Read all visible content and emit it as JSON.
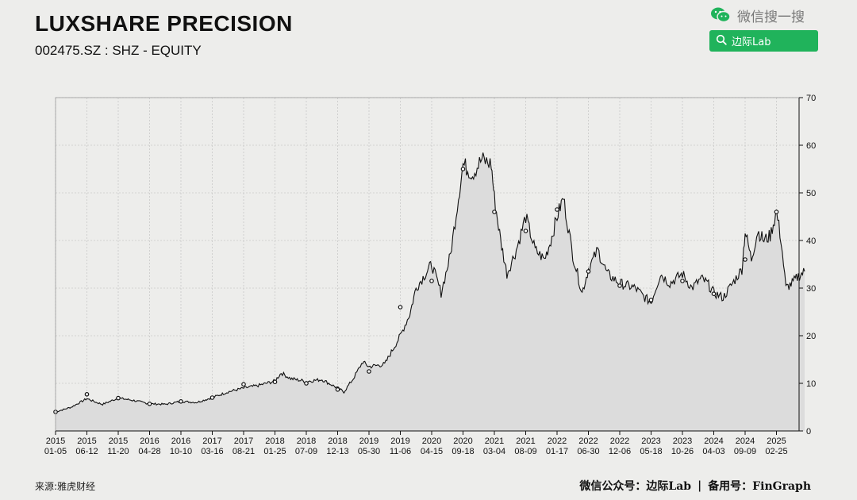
{
  "header": {
    "title": "LUXSHARE PRECISION",
    "subtitle": "002475.SZ : SHZ - EQUITY"
  },
  "wechat": {
    "icon": "wechat-icon",
    "search_text": "微信搜一搜",
    "button_icon": "search-icon",
    "button_label": "边际Lab",
    "button_color": "#20b35b"
  },
  "footer": {
    "source": "来源:雅虎财经",
    "wechat_account": "微信公众号：边际Lab",
    "separator": "|",
    "backup_account": "备用号：FinGraph"
  },
  "chart_data": {
    "type": "area",
    "title": "",
    "xlabel": "",
    "ylabel": "",
    "ylim": [
      0,
      70
    ],
    "y_ticks": [
      0,
      10,
      20,
      30,
      40,
      50,
      60,
      70
    ],
    "y_axis_side": "right",
    "grid": true,
    "line_color": "#111111",
    "fill_color": "#dcdcdc",
    "x_ticks": [
      {
        "year": "2015",
        "md": "01-05"
      },
      {
        "year": "2015",
        "md": "06-12"
      },
      {
        "year": "2015",
        "md": "11-20"
      },
      {
        "year": "2016",
        "md": "04-28"
      },
      {
        "year": "2016",
        "md": "10-10"
      },
      {
        "year": "2017",
        "md": "03-16"
      },
      {
        "year": "2017",
        "md": "08-21"
      },
      {
        "year": "2018",
        "md": "01-25"
      },
      {
        "year": "2018",
        "md": "07-09"
      },
      {
        "year": "2018",
        "md": "12-13"
      },
      {
        "year": "2019",
        "md": "05-30"
      },
      {
        "year": "2019",
        "md": "11-06"
      },
      {
        "year": "2020",
        "md": "04-15"
      },
      {
        "year": "2020",
        "md": "09-18"
      },
      {
        "year": "2021",
        "md": "03-04"
      },
      {
        "year": "2021",
        "md": "08-09"
      },
      {
        "year": "2022",
        "md": "01-17"
      },
      {
        "year": "2022",
        "md": "06-30"
      },
      {
        "year": "2022",
        "md": "12-06"
      },
      {
        "year": "2023",
        "md": "05-18"
      },
      {
        "year": "2023",
        "md": "10-26"
      },
      {
        "year": "2024",
        "md": "04-03"
      },
      {
        "year": "2024",
        "md": "09-09"
      },
      {
        "year": "2025",
        "md": "02-25"
      }
    ],
    "series": [
      {
        "values": [
          [
            0,
            4.0
          ],
          [
            0.5,
            5.0
          ],
          [
            1,
            6.8
          ],
          [
            1.3,
            6.0
          ],
          [
            1.5,
            5.6
          ],
          [
            2,
            6.9
          ],
          [
            2.5,
            6.4
          ],
          [
            3,
            5.7
          ],
          [
            3.5,
            5.6
          ],
          [
            4,
            6.2
          ],
          [
            4.5,
            6.0
          ],
          [
            5,
            7.0
          ],
          [
            5.5,
            8.2
          ],
          [
            6,
            9.0
          ],
          [
            6.5,
            9.6
          ],
          [
            7,
            10.5
          ],
          [
            7.2,
            12.2
          ],
          [
            7.5,
            11.0
          ],
          [
            8,
            10.4
          ],
          [
            8.5,
            10.8
          ],
          [
            9,
            9.0
          ],
          [
            9.2,
            8.2
          ],
          [
            9.5,
            11.0
          ],
          [
            9.8,
            14.5
          ],
          [
            10,
            13.5
          ],
          [
            10.5,
            14.0
          ],
          [
            11,
            20.0
          ],
          [
            11.3,
            24.5
          ],
          [
            11.5,
            30.0
          ],
          [
            11.8,
            33.0
          ],
          [
            12,
            35.0
          ],
          [
            12.3,
            29.0
          ],
          [
            12.6,
            37.0
          ],
          [
            13,
            56.0
          ],
          [
            13.3,
            54.0
          ],
          [
            13.6,
            57.0
          ],
          [
            13.9,
            56.0
          ],
          [
            14,
            49.0
          ],
          [
            14.2,
            40.0
          ],
          [
            14.4,
            33.0
          ],
          [
            14.7,
            38.0
          ],
          [
            15,
            45.0
          ],
          [
            15.3,
            38.0
          ],
          [
            15.6,
            36.0
          ],
          [
            15.8,
            40.0
          ],
          [
            16,
            45.0
          ],
          [
            16.2,
            49.0
          ],
          [
            16.5,
            37.0
          ],
          [
            16.8,
            29.0
          ],
          [
            17,
            34.0
          ],
          [
            17.3,
            38.0
          ],
          [
            17.6,
            33.0
          ],
          [
            18,
            31.0
          ],
          [
            18.5,
            30.0
          ],
          [
            18.8,
            28.0
          ],
          [
            19,
            27.0
          ],
          [
            19.3,
            33.0
          ],
          [
            19.6,
            31.0
          ],
          [
            20,
            33.0
          ],
          [
            20.3,
            30.0
          ],
          [
            20.6,
            32.0
          ],
          [
            20.8,
            31.0
          ],
          [
            21,
            29.0
          ],
          [
            21.3,
            28.0
          ],
          [
            21.6,
            31.0
          ],
          [
            21.9,
            34.0
          ],
          [
            22,
            42.0
          ],
          [
            22.2,
            36.0
          ],
          [
            22.4,
            42.0
          ],
          [
            22.6,
            40.0
          ],
          [
            22.8,
            41.0
          ],
          [
            23,
            46.0
          ],
          [
            23.15,
            40.0
          ],
          [
            23.3,
            30.0
          ],
          [
            23.5,
            31.0
          ],
          [
            23.7,
            32.5
          ],
          [
            23.9,
            33.5
          ]
        ]
      }
    ],
    "markers": [
      [
        0,
        4.0
      ],
      [
        1,
        7.7
      ],
      [
        2,
        6.9
      ],
      [
        3,
        5.7
      ],
      [
        4,
        6.2
      ],
      [
        5,
        7.0
      ],
      [
        6,
        9.8
      ],
      [
        7,
        10.3
      ],
      [
        8,
        10.0
      ],
      [
        9,
        8.7
      ],
      [
        10,
        12.5
      ],
      [
        11,
        26.0
      ],
      [
        12,
        31.5
      ],
      [
        13,
        55.0
      ],
      [
        14,
        46.0
      ],
      [
        15,
        42.0
      ],
      [
        16,
        46.5
      ],
      [
        17,
        33.5
      ],
      [
        18,
        30.5
      ],
      [
        19,
        27.5
      ],
      [
        20,
        31.5
      ],
      [
        21,
        28.8
      ],
      [
        22,
        36.0
      ],
      [
        23,
        46.0
      ]
    ]
  }
}
